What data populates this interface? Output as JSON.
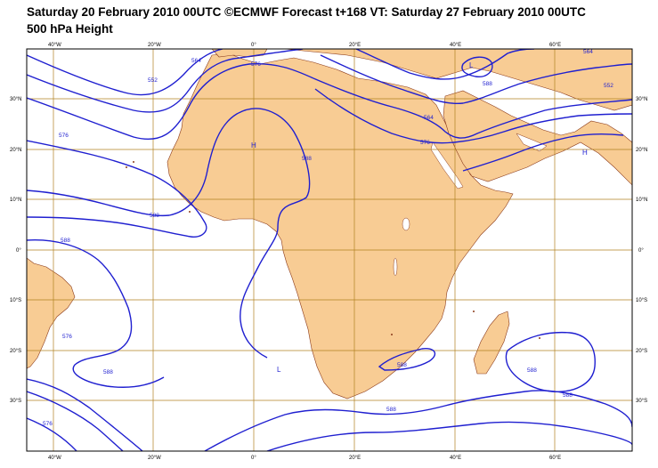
{
  "header": {
    "title": "Saturday 20 February 2010 00UTC ©ECMWF Forecast t+168 VT: Saturday 27 February 2010 00UTC",
    "subtitle": "500 hPa Height"
  },
  "map": {
    "field": "500 hPa geopotential height (dam)",
    "longitude_ticks": [
      "40°W",
      "20°W",
      "0°",
      "20°E",
      "40°E",
      "60°E"
    ],
    "latitude_ticks_left": [
      "30°N",
      "20°N",
      "10°N",
      "0°",
      "10°S",
      "20°S",
      "30°S"
    ],
    "latitude_ticks_right": [
      "30°N",
      "20°N",
      "10°N",
      "0°",
      "10°S",
      "20°S",
      "30°S"
    ],
    "contour_labels": [
      "552",
      "564",
      "576",
      "588",
      "552",
      "564",
      "576",
      "564",
      "576",
      "588",
      "588",
      "588",
      "576",
      "588",
      "588",
      "588",
      "576",
      "588",
      "588"
    ],
    "pressure_centers": [
      "L",
      "H",
      "H",
      "L"
    ],
    "colors": {
      "land": "#f8cc94",
      "coastline": "#8b3a1a",
      "contour": "#1f1fd0",
      "grid": "#b08020",
      "sea": "#ffffff"
    }
  }
}
